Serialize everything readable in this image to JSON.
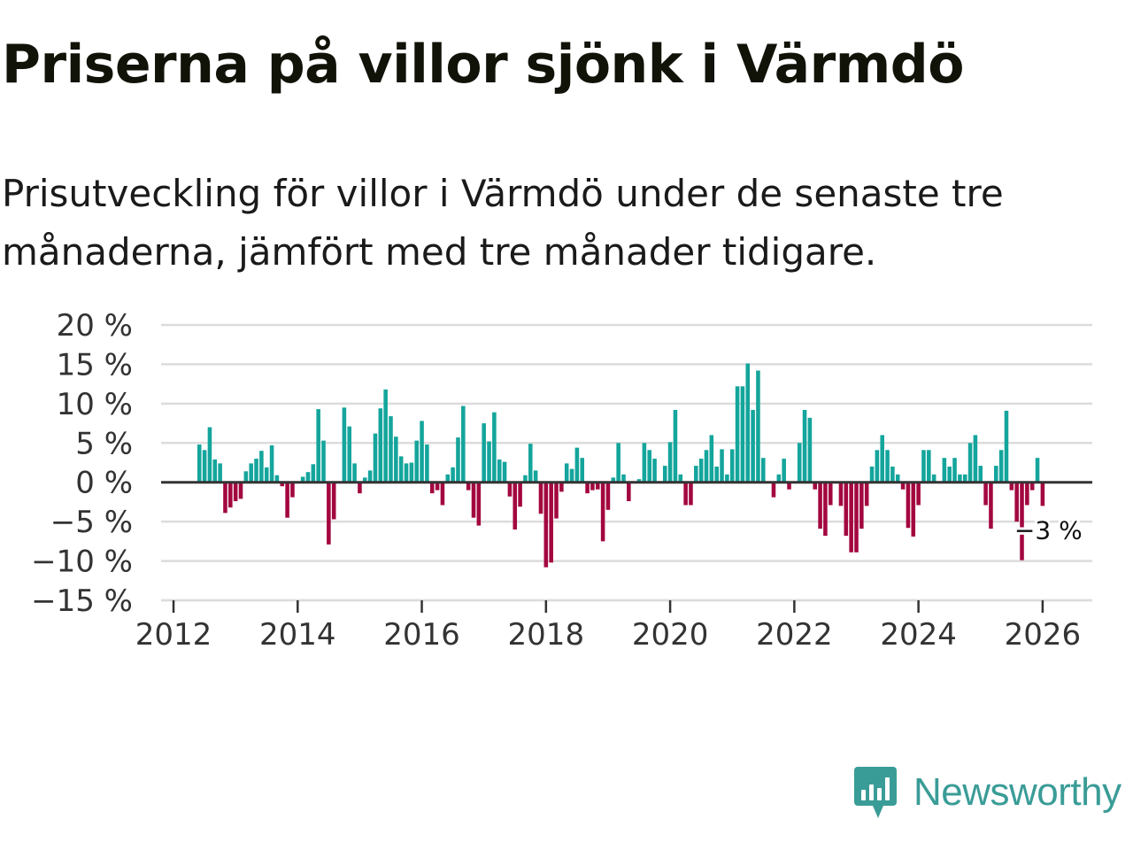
{
  "title": "Priserna på villor sjönk i Värmdö",
  "subtitle": "Prisutveckling för villor i Värmdö under de senaste tre månaderna, jämfört med tre månader tidigare.",
  "brand": {
    "name": "Newsworthy",
    "logo_icon": "bar-chart-flag-icon",
    "color": "#3a9c97"
  },
  "colors": {
    "positive": "#14a59c",
    "negative": "#a3073f",
    "grid": "#dcdcdc",
    "zero_line": "#333333"
  },
  "chart_data": {
    "type": "bar",
    "title": "Priserna på villor sjönk i Värmdö",
    "xlabel": "",
    "ylabel": "",
    "ylim": [
      -15,
      20
    ],
    "xlim": [
      2011.8,
      2026.8
    ],
    "y_ticks": [
      20,
      15,
      10,
      5,
      0,
      -5,
      -10,
      -15
    ],
    "y_tick_labels": [
      "20 %",
      "15 %",
      "10 %",
      "5 %",
      "0 %",
      "−5 %",
      "−10 %",
      "−15 %"
    ],
    "x_ticks": [
      2012,
      2014,
      2016,
      2018,
      2020,
      2022,
      2024,
      2026
    ],
    "x_tick_labels": [
      "2012",
      "2014",
      "2016",
      "2018",
      "2020",
      "2022",
      "2024",
      "2026"
    ],
    "grid": true,
    "start": {
      "year": 2012,
      "month": 6
    },
    "unit": "%",
    "values": [
      4.8,
      4.1,
      7.0,
      2.9,
      2.4,
      -3.9,
      -3.2,
      -2.4,
      -2.1,
      1.4,
      2.4,
      3.0,
      4.0,
      1.9,
      4.7,
      0.9,
      -0.5,
      -4.5,
      -1.9,
      0,
      0.7,
      1.3,
      2.3,
      9.3,
      5.3,
      -7.9,
      -4.7,
      0,
      9.5,
      7.1,
      2.4,
      -1.4,
      0.6,
      1.5,
      6.2,
      9.4,
      11.8,
      8.4,
      5.8,
      3.3,
      2.4,
      2.5,
      5.3,
      7.8,
      4.8,
      -1.4,
      -1.0,
      -2.9,
      1.0,
      1.9,
      5.7,
      9.7,
      -1.0,
      -4.5,
      -5.5,
      7.5,
      5.2,
      8.9,
      2.9,
      2.6,
      -1.8,
      -6.0,
      -3.1,
      0.9,
      4.9,
      1.5,
      -4.0,
      -10.8,
      -10.2,
      -4.6,
      -1.2,
      2.4,
      1.7,
      4.4,
      3.1,
      -1.4,
      -1.0,
      -0.9,
      -7.5,
      -3.5,
      0.6,
      5.0,
      1.0,
      -2.4,
      0,
      0.4,
      5.0,
      4.1,
      3.0,
      0,
      2.1,
      5.1,
      9.2,
      1.0,
      -2.9,
      -2.9,
      2.1,
      3.0,
      4.1,
      6.0,
      2.0,
      4.2,
      1.0,
      4.2,
      12.2,
      12.2,
      15.1,
      9.2,
      14.2,
      3.1,
      0,
      -1.9,
      1.0,
      3.0,
      -0.9,
      0,
      5.0,
      9.2,
      8.2,
      -0.9,
      -5.9,
      -6.8,
      -2.9,
      0,
      -3.0,
      -6.8,
      -8.9,
      -8.9,
      -5.9,
      -3.0,
      2.0,
      4.1,
      6.0,
      4.1,
      2.0,
      1.0,
      -0.9,
      -5.8,
      -6.9,
      -2.9,
      4.1,
      4.1,
      1.0,
      0,
      3.1,
      2.0,
      3.1,
      1.0,
      1.0,
      5.0,
      6.0,
      2.1,
      -2.9,
      -5.9,
      2.1,
      4.1,
      9.1,
      -1.0,
      -5.0,
      -9.9,
      -2.9,
      -1.0,
      3.1,
      -3.0
    ],
    "annotation": {
      "text": "−3 %",
      "value": -3,
      "target": "last"
    }
  }
}
